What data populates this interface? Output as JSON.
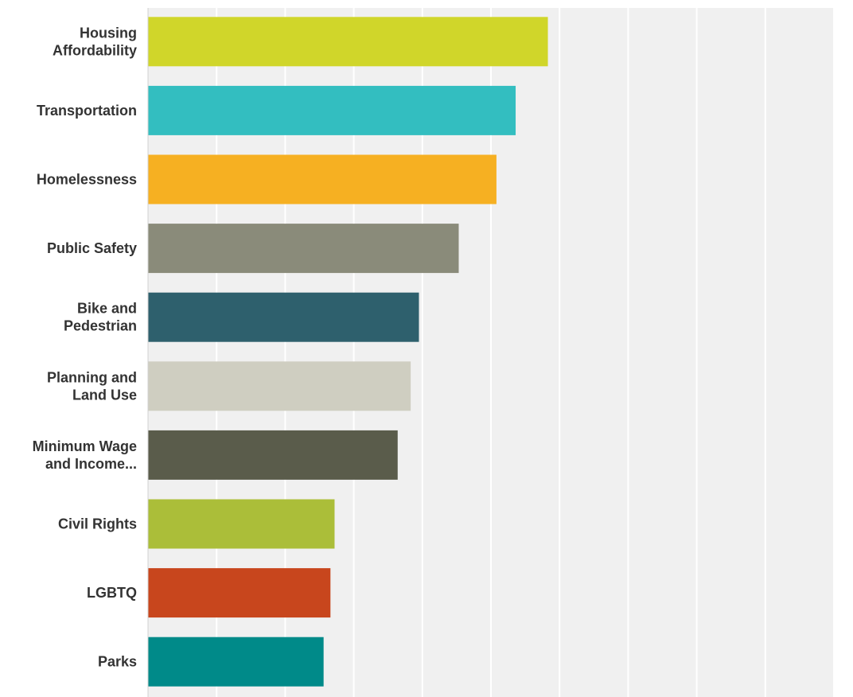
{
  "chart_data": {
    "type": "bar",
    "orientation": "horizontal",
    "categories": [
      [
        "Housing",
        "Affordability"
      ],
      [
        "Transportation"
      ],
      [
        "Homelessness"
      ],
      [
        "Public Safety"
      ],
      [
        "Bike and",
        "Pedestrian"
      ],
      [
        "Planning and",
        "Land Use"
      ],
      [
        "Minimum Wage",
        "and Income..."
      ],
      [
        "Civil Rights"
      ],
      [
        "LGBTQ"
      ],
      [
        "Parks"
      ]
    ],
    "values": [
      58.3,
      53.6,
      50.8,
      45.3,
      39.5,
      38.3,
      36.4,
      27.2,
      26.6,
      25.6
    ],
    "colors": [
      "#d0d62a",
      "#33bec0",
      "#f6b022",
      "#8a8b7a",
      "#2e606d",
      "#cfcec1",
      "#5a5c4b",
      "#abbe39",
      "#c8461d",
      "#008a89"
    ],
    "xlim": [
      0,
      100
    ],
    "xticks": [
      0,
      10,
      20,
      30,
      40,
      50,
      60,
      70,
      80,
      90,
      100
    ],
    "grid": true,
    "plot_background": "#f0f0f0",
    "gridline_color": "#ffffff",
    "axis_color": "#d0d0d0",
    "tick_labels_visible": false,
    "legend": "none"
  }
}
